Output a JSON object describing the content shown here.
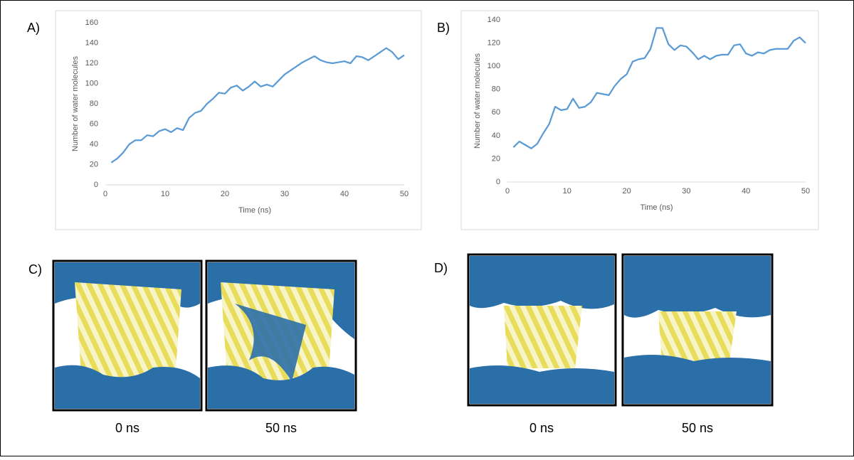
{
  "chart_data": [
    {
      "type": "line",
      "panel_label": "A)",
      "x_label": "Time (ns)",
      "y_label": "Number of water molecules",
      "x": [
        1,
        2,
        3,
        4,
        5,
        6,
        7,
        8,
        9,
        10,
        11,
        12,
        13,
        14,
        15,
        16,
        17,
        18,
        19,
        20,
        21,
        22,
        23,
        24,
        25,
        26,
        27,
        28,
        29,
        30,
        31,
        32,
        33,
        34,
        35,
        36,
        37,
        38,
        39,
        40,
        41,
        42,
        43,
        44,
        45,
        46,
        47,
        48,
        49,
        50
      ],
      "series": [
        {
          "color": "#5b9bd5",
          "values": [
            22,
            26,
            32,
            40,
            44,
            44,
            49,
            48,
            53,
            55,
            52,
            56,
            54,
            66,
            71,
            73,
            80,
            85,
            91,
            90,
            96,
            98,
            93,
            97,
            102,
            97,
            99,
            97,
            103,
            109,
            113,
            117,
            121,
            124,
            127,
            123,
            121,
            120,
            121,
            122,
            120,
            127,
            126,
            123,
            127,
            131,
            135,
            131,
            124,
            128
          ]
        }
      ],
      "xlim": [
        0,
        50
      ],
      "xticks": [
        0,
        10,
        20,
        30,
        40,
        50
      ],
      "ylim": [
        0,
        160
      ],
      "yticks": [
        0,
        20,
        40,
        60,
        80,
        100,
        120,
        140,
        160
      ]
    },
    {
      "type": "line",
      "panel_label": "B)",
      "x_label": "Time (ns)",
      "y_label": "Number of water molecules",
      "x": [
        1,
        2,
        3,
        4,
        5,
        6,
        7,
        8,
        9,
        10,
        11,
        12,
        13,
        14,
        15,
        16,
        17,
        18,
        19,
        20,
        21,
        22,
        23,
        24,
        25,
        26,
        27,
        28,
        29,
        30,
        31,
        32,
        33,
        34,
        35,
        36,
        37,
        38,
        39,
        40,
        41,
        42,
        43,
        44,
        45,
        46,
        47,
        48,
        49,
        50
      ],
      "series": [
        {
          "color": "#5b9bd5",
          "values": [
            30,
            35,
            32,
            29,
            33,
            42,
            50,
            65,
            62,
            63,
            72,
            64,
            65,
            69,
            77,
            76,
            75,
            83,
            89,
            93,
            104,
            106,
            107,
            115,
            133,
            133,
            119,
            114,
            118,
            117,
            112,
            106,
            109,
            106,
            109,
            110,
            110,
            118,
            119,
            111,
            109,
            112,
            111,
            114,
            115,
            115,
            115,
            122,
            125,
            120
          ]
        }
      ],
      "xlim": [
        0,
        50
      ],
      "xticks": [
        0,
        10,
        20,
        30,
        40,
        50
      ],
      "ylim": [
        0,
        140
      ],
      "yticks": [
        0,
        20,
        40,
        60,
        80,
        100,
        120,
        140
      ]
    }
  ],
  "images": {
    "labels": [
      "C)",
      "D)"
    ],
    "captions": [
      "0 ns",
      "50 ns",
      "0 ns",
      "50 ns"
    ]
  }
}
